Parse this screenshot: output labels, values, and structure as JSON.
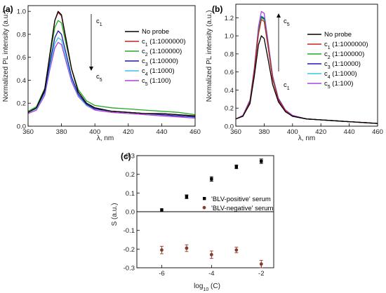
{
  "chart_data": [
    {
      "panel": "(a)",
      "type": "line",
      "xlabel": "λ, nm",
      "ylabel": "Normalized PL intensity (a.u.)",
      "xlim": [
        360,
        460
      ],
      "ylim": [
        0.0,
        1.05
      ],
      "x_ticks": [
        "360",
        "380",
        "400",
        "420",
        "440",
        "460"
      ],
      "y_ticks": [
        "0.0",
        "0.2",
        "0.4",
        "0.6",
        "0.8",
        "1.0"
      ],
      "annotations": {
        "top": "c1",
        "bottom": "c5",
        "arrow": "down"
      },
      "x": [
        360,
        365,
        370,
        373,
        376,
        378,
        380,
        383,
        386,
        390,
        395,
        400,
        410,
        420,
        430,
        440,
        450,
        460
      ],
      "series": [
        {
          "name": "No probe",
          "label_main": "No probe",
          "label_sub": "",
          "label_ratio": "",
          "color": "#000000",
          "values": [
            0.12,
            0.16,
            0.32,
            0.62,
            0.92,
            1.0,
            0.97,
            0.74,
            0.5,
            0.3,
            0.2,
            0.16,
            0.13,
            0.12,
            0.11,
            0.11,
            0.1,
            0.09
          ]
        },
        {
          "name": "c1 (1:1000000)",
          "label_main": "c",
          "label_sub": "1",
          "label_ratio": " (1:1000000)",
          "color": "#cc2020",
          "values": [
            0.12,
            0.16,
            0.32,
            0.62,
            0.92,
            0.99,
            0.96,
            0.73,
            0.5,
            0.3,
            0.2,
            0.16,
            0.13,
            0.12,
            0.11,
            0.11,
            0.1,
            0.09
          ]
        },
        {
          "name": "c2 (1:100000)",
          "label_main": "c",
          "label_sub": "2",
          "label_ratio": " (1:100000)",
          "color": "#22aa22",
          "values": [
            0.13,
            0.17,
            0.33,
            0.6,
            0.86,
            0.92,
            0.9,
            0.7,
            0.5,
            0.32,
            0.22,
            0.18,
            0.16,
            0.15,
            0.14,
            0.13,
            0.12,
            0.1
          ]
        },
        {
          "name": "c3 (1:10000)",
          "label_main": "c",
          "label_sub": "3",
          "label_ratio": " (1:10000)",
          "color": "#1a1aaa",
          "values": [
            0.12,
            0.16,
            0.3,
            0.55,
            0.77,
            0.83,
            0.8,
            0.62,
            0.43,
            0.28,
            0.19,
            0.15,
            0.13,
            0.12,
            0.11,
            0.1,
            0.09,
            0.08
          ]
        },
        {
          "name": "c4 (1:1000)",
          "label_main": "c",
          "label_sub": "4",
          "label_ratio": " (1:1000)",
          "color": "#3fc0ea",
          "values": [
            0.12,
            0.15,
            0.29,
            0.52,
            0.72,
            0.77,
            0.75,
            0.58,
            0.41,
            0.27,
            0.18,
            0.15,
            0.13,
            0.12,
            0.11,
            0.1,
            0.09,
            0.08
          ]
        },
        {
          "name": "c5 (1:100)",
          "label_main": "c",
          "label_sub": "5",
          "label_ratio": " (1:100)",
          "color": "#b040d8",
          "values": [
            0.11,
            0.14,
            0.27,
            0.49,
            0.68,
            0.73,
            0.71,
            0.55,
            0.39,
            0.26,
            0.18,
            0.14,
            0.12,
            0.11,
            0.1,
            0.09,
            0.08,
            0.07
          ]
        }
      ]
    },
    {
      "panel": "(b)",
      "type": "line",
      "xlabel": "λ, nm",
      "ylabel": "Normalized PL intensity (a.u.)",
      "xlim": [
        360,
        460
      ],
      "ylim": [
        0.0,
        1.35
      ],
      "x_ticks": [
        "360",
        "380",
        "400",
        "420",
        "440",
        "460"
      ],
      "y_ticks": [
        "0.0",
        "0.2",
        "0.4",
        "0.6",
        "0.8",
        "1.0",
        "1.2"
      ],
      "annotations": {
        "top": "c5",
        "bottom": "c1",
        "arrow": "up"
      },
      "x": [
        360,
        365,
        370,
        373,
        376,
        378,
        380,
        383,
        386,
        390,
        395,
        400,
        410,
        420,
        430,
        440,
        450,
        460
      ],
      "series": [
        {
          "name": "No probe",
          "label_main": "No probe",
          "label_sub": "",
          "label_ratio": "",
          "color": "#000000",
          "values": [
            0.08,
            0.11,
            0.25,
            0.55,
            0.9,
            1.0,
            0.97,
            0.72,
            0.46,
            0.27,
            0.16,
            0.11,
            0.08,
            0.07,
            0.06,
            0.05,
            0.04,
            0.03
          ]
        },
        {
          "name": "c1 (1:1000000)",
          "label_main": "c",
          "label_sub": "1",
          "label_ratio": " (1:1000000)",
          "color": "#cc2020",
          "values": [
            0.08,
            0.11,
            0.27,
            0.6,
            1.02,
            1.18,
            1.16,
            0.85,
            0.52,
            0.29,
            0.17,
            0.11,
            0.08,
            0.07,
            0.06,
            0.05,
            0.04,
            0.03
          ]
        },
        {
          "name": "c2 (1:100000)",
          "label_main": "c",
          "label_sub": "2",
          "label_ratio": " (1:100000)",
          "color": "#22aa22",
          "values": [
            0.08,
            0.11,
            0.27,
            0.61,
            1.04,
            1.2,
            1.18,
            0.86,
            0.53,
            0.29,
            0.17,
            0.11,
            0.08,
            0.07,
            0.06,
            0.05,
            0.04,
            0.03
          ]
        },
        {
          "name": "c3 (1:10000)",
          "label_main": "c",
          "label_sub": "3",
          "label_ratio": " (1:10000)",
          "color": "#1a1aaa",
          "values": [
            0.08,
            0.11,
            0.28,
            0.62,
            1.05,
            1.21,
            1.19,
            0.87,
            0.53,
            0.3,
            0.17,
            0.11,
            0.08,
            0.07,
            0.06,
            0.05,
            0.04,
            0.03
          ]
        },
        {
          "name": "c4 (1:1000)",
          "label_main": "c",
          "label_sub": "4",
          "label_ratio": " (1:1000)",
          "color": "#3fc0ea",
          "values": [
            0.08,
            0.11,
            0.28,
            0.62,
            1.06,
            1.22,
            1.2,
            0.88,
            0.54,
            0.3,
            0.17,
            0.11,
            0.08,
            0.07,
            0.06,
            0.05,
            0.04,
            0.03
          ]
        },
        {
          "name": "c5 (1:100)",
          "label_main": "c",
          "label_sub": "5",
          "label_ratio": " (1:100)",
          "color": "#b040d8",
          "values": [
            0.08,
            0.12,
            0.29,
            0.64,
            1.1,
            1.27,
            1.25,
            0.91,
            0.56,
            0.31,
            0.18,
            0.12,
            0.08,
            0.07,
            0.06,
            0.05,
            0.04,
            0.03
          ]
        }
      ]
    },
    {
      "panel": "(c)",
      "type": "scatter",
      "xlabel_main": "log",
      "xlabel_sub": "10",
      "xlabel_rest": " (C)",
      "ylabel": "S (a.u.)",
      "xlim": [
        -7,
        -1.5
      ],
      "ylim": [
        -0.3,
        0.3
      ],
      "x_ticks": [
        "-6",
        "-4",
        "-2"
      ],
      "y_ticks": [
        "0.3",
        "0.2",
        "0.1",
        "0.0",
        "-0.1",
        "-0.2",
        "-0.3"
      ],
      "legend_position": "right-middle",
      "series": [
        {
          "name": "'BLV-positive' serum",
          "marker": "square",
          "color": "#000000",
          "x": [
            -6,
            -5,
            -4,
            -3,
            -2
          ],
          "y": [
            0.01,
            0.08,
            0.175,
            0.24,
            0.27
          ],
          "err": [
            0.0,
            0.01,
            0.012,
            0.01,
            0.012
          ]
        },
        {
          "name": "'BLV-negative' serum",
          "marker": "circle",
          "color": "#8a3a2a",
          "x": [
            -6,
            -5,
            -4,
            -3,
            -2
          ],
          "y": [
            -0.205,
            -0.195,
            -0.23,
            -0.205,
            -0.28
          ],
          "err": [
            0.02,
            0.018,
            0.02,
            0.015,
            0.02
          ]
        }
      ]
    }
  ]
}
